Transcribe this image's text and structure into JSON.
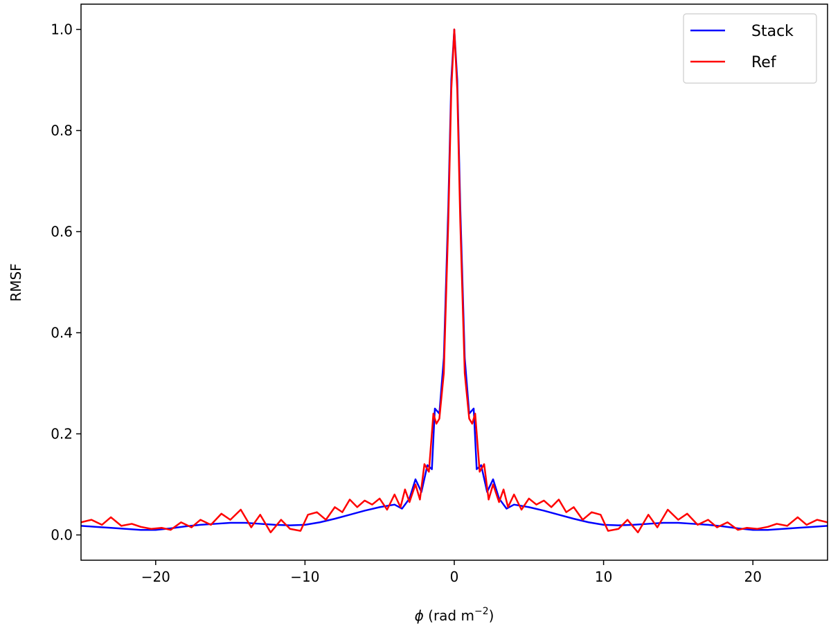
{
  "chart_data": {
    "type": "line",
    "xlabel_symbol": "ϕ",
    "xlabel_rest": " (rad m",
    "xlabel_exp": "−2",
    "xlabel_close": ")",
    "ylabel": "RMSF",
    "xlim": [
      -25,
      25
    ],
    "ylim": [
      -0.05,
      1.05
    ],
    "xticks": [
      -20,
      -10,
      0,
      10,
      20
    ],
    "xtick_labels": [
      "−20",
      "−10",
      "0",
      "10",
      "20"
    ],
    "yticks": [
      0.0,
      0.2,
      0.4,
      0.6,
      0.8,
      1.0
    ],
    "ytick_labels": [
      "0.0",
      "0.2",
      "0.4",
      "0.6",
      "0.8",
      "1.0"
    ],
    "grid": false,
    "legend": "top-right",
    "series": [
      {
        "name": "Stack",
        "color": "#0000ff",
        "points": [
          [
            -25,
            0.018
          ],
          [
            -24,
            0.016
          ],
          [
            -23,
            0.014
          ],
          [
            -22,
            0.012
          ],
          [
            -21,
            0.01
          ],
          [
            -20,
            0.01
          ],
          [
            -19,
            0.013
          ],
          [
            -18,
            0.017
          ],
          [
            -17,
            0.02
          ],
          [
            -16,
            0.022
          ],
          [
            -15,
            0.024
          ],
          [
            -14,
            0.024
          ],
          [
            -13,
            0.022
          ],
          [
            -12,
            0.02
          ],
          [
            -11,
            0.019
          ],
          [
            -10,
            0.02
          ],
          [
            -9,
            0.025
          ],
          [
            -8,
            0.032
          ],
          [
            -7,
            0.04
          ],
          [
            -6,
            0.048
          ],
          [
            -5,
            0.055
          ],
          [
            -4,
            0.06
          ],
          [
            -3.5,
            0.052
          ],
          [
            -3,
            0.072
          ],
          [
            -2.6,
            0.11
          ],
          [
            -2.2,
            0.085
          ],
          [
            -1.8,
            0.138
          ],
          [
            -1.5,
            0.13
          ],
          [
            -1.3,
            0.25
          ],
          [
            -1.0,
            0.24
          ],
          [
            -0.7,
            0.35
          ],
          [
            -0.4,
            0.65
          ],
          [
            -0.2,
            0.9
          ],
          [
            0,
            1.0
          ],
          [
            0.2,
            0.9
          ],
          [
            0.4,
            0.65
          ],
          [
            0.7,
            0.35
          ],
          [
            1.0,
            0.24
          ],
          [
            1.3,
            0.25
          ],
          [
            1.5,
            0.13
          ],
          [
            1.8,
            0.138
          ],
          [
            2.2,
            0.085
          ],
          [
            2.6,
            0.11
          ],
          [
            3,
            0.072
          ],
          [
            3.5,
            0.052
          ],
          [
            4,
            0.06
          ],
          [
            5,
            0.055
          ],
          [
            6,
            0.048
          ],
          [
            7,
            0.04
          ],
          [
            8,
            0.032
          ],
          [
            9,
            0.025
          ],
          [
            10,
            0.02
          ],
          [
            11,
            0.019
          ],
          [
            12,
            0.02
          ],
          [
            13,
            0.022
          ],
          [
            14,
            0.024
          ],
          [
            15,
            0.024
          ],
          [
            16,
            0.022
          ],
          [
            17,
            0.02
          ],
          [
            18,
            0.017
          ],
          [
            19,
            0.013
          ],
          [
            20,
            0.01
          ],
          [
            21,
            0.01
          ],
          [
            22,
            0.012
          ],
          [
            23,
            0.014
          ],
          [
            24,
            0.016
          ],
          [
            25,
            0.018
          ]
        ]
      },
      {
        "name": "Ref",
        "color": "#ff0000",
        "points": [
          [
            -25,
            0.025
          ],
          [
            -24.3,
            0.03
          ],
          [
            -23.6,
            0.02
          ],
          [
            -23,
            0.035
          ],
          [
            -22.3,
            0.018
          ],
          [
            -21.6,
            0.022
          ],
          [
            -21,
            0.016
          ],
          [
            -20.3,
            0.012
          ],
          [
            -19.6,
            0.014
          ],
          [
            -19,
            0.01
          ],
          [
            -18.3,
            0.025
          ],
          [
            -17.6,
            0.015
          ],
          [
            -17,
            0.03
          ],
          [
            -16.3,
            0.02
          ],
          [
            -15.6,
            0.042
          ],
          [
            -15,
            0.03
          ],
          [
            -14.3,
            0.05
          ],
          [
            -13.6,
            0.015
          ],
          [
            -13,
            0.04
          ],
          [
            -12.3,
            0.005
          ],
          [
            -11.6,
            0.03
          ],
          [
            -11,
            0.012
          ],
          [
            -10.3,
            0.008
          ],
          [
            -9.8,
            0.04
          ],
          [
            -9.2,
            0.045
          ],
          [
            -8.6,
            0.03
          ],
          [
            -8,
            0.055
          ],
          [
            -7.5,
            0.045
          ],
          [
            -7,
            0.07
          ],
          [
            -6.5,
            0.055
          ],
          [
            -6,
            0.068
          ],
          [
            -5.5,
            0.06
          ],
          [
            -5,
            0.072
          ],
          [
            -4.5,
            0.05
          ],
          [
            -4,
            0.08
          ],
          [
            -3.6,
            0.055
          ],
          [
            -3.3,
            0.09
          ],
          [
            -3,
            0.065
          ],
          [
            -2.6,
            0.1
          ],
          [
            -2.3,
            0.07
          ],
          [
            -2,
            0.14
          ],
          [
            -1.7,
            0.125
          ],
          [
            -1.4,
            0.24
          ],
          [
            -1.2,
            0.22
          ],
          [
            -1.0,
            0.23
          ],
          [
            -0.7,
            0.32
          ],
          [
            -0.4,
            0.62
          ],
          [
            -0.2,
            0.88
          ],
          [
            0,
            1.0
          ],
          [
            0.2,
            0.88
          ],
          [
            0.4,
            0.62
          ],
          [
            0.7,
            0.32
          ],
          [
            1.0,
            0.23
          ],
          [
            1.2,
            0.22
          ],
          [
            1.4,
            0.24
          ],
          [
            1.7,
            0.125
          ],
          [
            2,
            0.14
          ],
          [
            2.3,
            0.07
          ],
          [
            2.6,
            0.1
          ],
          [
            3,
            0.065
          ],
          [
            3.3,
            0.09
          ],
          [
            3.6,
            0.055
          ],
          [
            4,
            0.08
          ],
          [
            4.5,
            0.05
          ],
          [
            5,
            0.072
          ],
          [
            5.5,
            0.06
          ],
          [
            6,
            0.068
          ],
          [
            6.5,
            0.055
          ],
          [
            7,
            0.07
          ],
          [
            7.5,
            0.045
          ],
          [
            8,
            0.055
          ],
          [
            8.6,
            0.03
          ],
          [
            9.2,
            0.045
          ],
          [
            9.8,
            0.04
          ],
          [
            10.3,
            0.008
          ],
          [
            11,
            0.012
          ],
          [
            11.6,
            0.03
          ],
          [
            12.3,
            0.005
          ],
          [
            13,
            0.04
          ],
          [
            13.6,
            0.015
          ],
          [
            14.3,
            0.05
          ],
          [
            15,
            0.03
          ],
          [
            15.6,
            0.042
          ],
          [
            16.3,
            0.02
          ],
          [
            17,
            0.03
          ],
          [
            17.6,
            0.015
          ],
          [
            18.3,
            0.025
          ],
          [
            19,
            0.01
          ],
          [
            19.6,
            0.014
          ],
          [
            20.3,
            0.012
          ],
          [
            21,
            0.016
          ],
          [
            21.6,
            0.022
          ],
          [
            22.3,
            0.018
          ],
          [
            23,
            0.035
          ],
          [
            23.6,
            0.02
          ],
          [
            24.3,
            0.03
          ],
          [
            25,
            0.025
          ]
        ]
      }
    ]
  }
}
